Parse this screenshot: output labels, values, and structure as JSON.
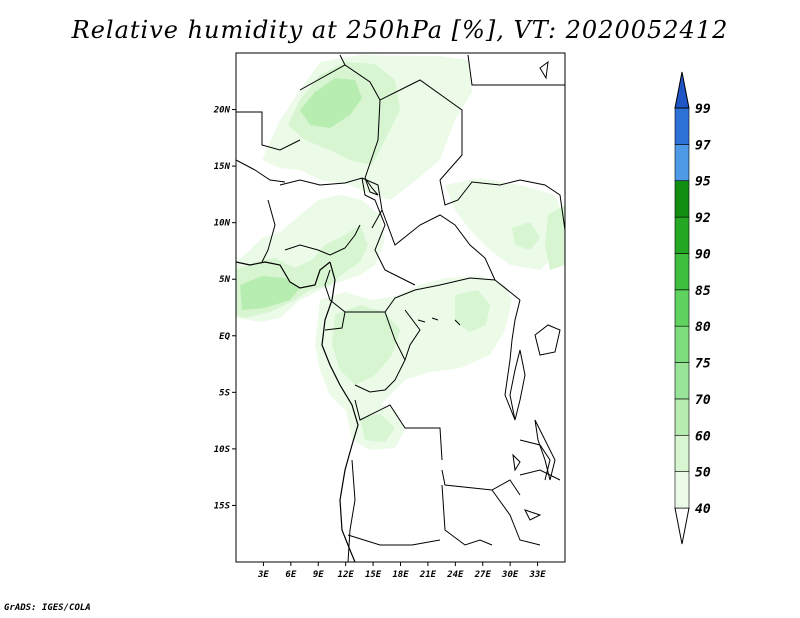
{
  "title": "Relative humidity at 250hPa [%], VT: 2020052412",
  "credit": "GrADS: IGES/COLA",
  "map": {
    "lon_range": [
      0,
      36
    ],
    "lat_range": [
      -20,
      25
    ],
    "lat_ticks": [
      {
        "value": 20,
        "label": "20N"
      },
      {
        "value": 15,
        "label": "15N"
      },
      {
        "value": 10,
        "label": "10N"
      },
      {
        "value": 5,
        "label": "5N"
      },
      {
        "value": 0,
        "label": "EQ"
      },
      {
        "value": -5,
        "label": "5S"
      },
      {
        "value": -10,
        "label": "10S"
      },
      {
        "value": -15,
        "label": "15S"
      }
    ],
    "lon_ticks": [
      {
        "value": 3,
        "label": "3E"
      },
      {
        "value": 6,
        "label": "6E"
      },
      {
        "value": 9,
        "label": "9E"
      },
      {
        "value": 12,
        "label": "12E"
      },
      {
        "value": 15,
        "label": "15E"
      },
      {
        "value": 18,
        "label": "18E"
      },
      {
        "value": 21,
        "label": "21E"
      },
      {
        "value": 24,
        "label": "24E"
      },
      {
        "value": 27,
        "label": "27E"
      },
      {
        "value": 30,
        "label": "30E"
      },
      {
        "value": 33,
        "label": "33E"
      }
    ]
  },
  "colorbar": {
    "levels": [
      "40",
      "50",
      "60",
      "70",
      "75",
      "80",
      "85",
      "90",
      "92",
      "95",
      "97",
      "99"
    ],
    "colors": [
      "#ffffff",
      "#ebfbe8",
      "#d6f5d0",
      "#b8edb2",
      "#9ae49a",
      "#7ddc7d",
      "#5fd25f",
      "#3dbf3d",
      "#24a824",
      "#128f12",
      "#4f9ae6",
      "#2e72d8",
      "#1f55c4"
    ]
  },
  "chart_data": {
    "type": "map",
    "variable": "Relative humidity at 250hPa",
    "units": "%",
    "valid_time": "2020052412",
    "region": "Central Africa",
    "contour_levels": [
      40,
      50,
      60,
      70,
      75,
      80,
      85,
      90,
      92,
      95,
      97,
      99
    ],
    "observations": [
      {
        "region": "Sahara north of Lake Chad (18–22N, 7–13E)",
        "rh_range": "60-75"
      },
      {
        "region": "Gulf of Guinea coast and Nigeria/Cameroon (3–10N, 0–14E)",
        "rh_range": "50-75"
      },
      {
        "region": "Gabon / Congo basin (5S–4N, 10–22E)",
        "rh_range": "50-70"
      },
      {
        "region": "Eastern DR Congo (1S–2N, 22–27E)",
        "rh_range": "50-60"
      },
      {
        "region": "Northern Angola coast (6–10S, 13–17E)",
        "rh_range": "50-60"
      },
      {
        "region": "Southern Africa (south of 10S)",
        "rh_range": "<40"
      }
    ]
  }
}
